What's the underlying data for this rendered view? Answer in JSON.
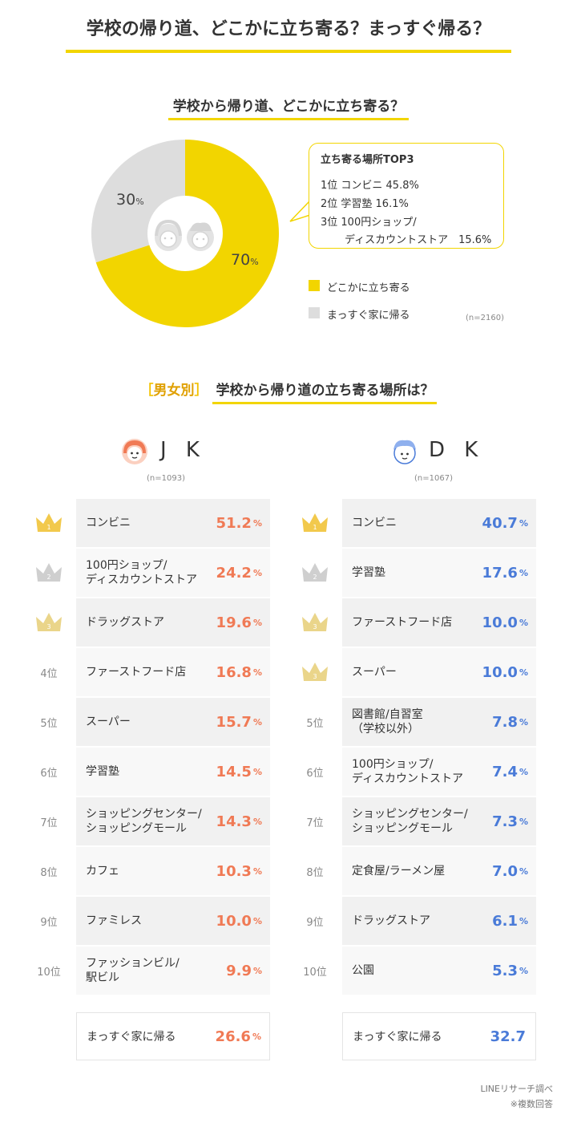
{
  "title": "学校の帰り道、どこかに立ち寄る？まっすぐ帰る？",
  "pie_question": "学校から帰り道、どこかに立ち寄る？",
  "callout": {
    "title": "立ち寄る場所TOP3",
    "lines": [
      "1位 コンビニ 45.8%",
      "2位 学習塾 16.1%",
      "3位 100円ショップ/",
      "ディスカウントストア　15.6%"
    ]
  },
  "pie_labels": {
    "a_num": "70",
    "b_num": "30",
    "unit": "%"
  },
  "legend": [
    "どこかに立ち寄る",
    "まっすぐ家に帰る"
  ],
  "pie_n": "(n=2160)",
  "section2": {
    "open": "［",
    "sex": "男女別",
    "close": "］",
    "rest": "学校から帰り道の立ち寄る場所は？"
  },
  "jk": {
    "label": "J K",
    "n": "(n=1093)"
  },
  "dk": {
    "label": "D K",
    "n": "(n=1067)"
  },
  "jk_rows": [
    {
      "rank": "1",
      "name": "コンビニ",
      "value": "51.2",
      "unit": "%"
    },
    {
      "rank": "2",
      "name": "100円ショップ/\nディスカウントストア",
      "value": "24.2",
      "unit": "%"
    },
    {
      "rank": "3",
      "name": "ドラッグストア",
      "value": "19.6",
      "unit": "%"
    },
    {
      "rank": "4位",
      "name": "ファーストフード店",
      "value": "16.8",
      "unit": "%"
    },
    {
      "rank": "5位",
      "name": "スーパー",
      "value": "15.7",
      "unit": "%"
    },
    {
      "rank": "6位",
      "name": "学習塾",
      "value": "14.5",
      "unit": "%"
    },
    {
      "rank": "7位",
      "name": "ショッピングセンター/\nショッピングモール",
      "value": "14.3",
      "unit": "%"
    },
    {
      "rank": "8位",
      "name": "カフェ",
      "value": "10.3",
      "unit": "%"
    },
    {
      "rank": "9位",
      "name": "ファミレス",
      "value": "10.0",
      "unit": "%"
    },
    {
      "rank": "10位",
      "name": "ファッションビル/\n駅ビル",
      "value": "9.9",
      "unit": "%"
    }
  ],
  "dk_rows": [
    {
      "rank": "1",
      "name": "コンビニ",
      "value": "40.7",
      "unit": "%"
    },
    {
      "rank": "2",
      "name": "学習塾",
      "value": "17.6",
      "unit": "%"
    },
    {
      "rank": "3",
      "name": "ファーストフード店",
      "value": "10.0",
      "unit": "%"
    },
    {
      "rank": "3",
      "name": "スーパー",
      "value": "10.0",
      "unit": "%"
    },
    {
      "rank": "5位",
      "name": "図書館/自習室\n（学校以外）",
      "value": "7.8",
      "unit": "%"
    },
    {
      "rank": "6位",
      "name": "100円ショップ/\nディスカウントストア",
      "value": "7.4",
      "unit": "%"
    },
    {
      "rank": "7位",
      "name": "ショッピングセンター/\nショッピングモール",
      "value": "7.3",
      "unit": "%"
    },
    {
      "rank": "8位",
      "name": "定食屋/ラーメン屋",
      "value": "7.0",
      "unit": "%"
    },
    {
      "rank": "9位",
      "name": "ドラッグストア",
      "value": "6.1",
      "unit": "%"
    },
    {
      "rank": "10位",
      "name": "公園",
      "value": "5.3",
      "unit": "%"
    }
  ],
  "jk_home": {
    "name": "まっすぐ家に帰る",
    "value": "26.6",
    "unit": "%"
  },
  "dk_home": {
    "name": "まっすぐ家に帰る",
    "value": "32.7"
  },
  "footer": [
    "LINEリサーチ調べ",
    "※複数回答"
  ],
  "colors": {
    "yellow": "#f2d500",
    "grey": "#dddddd",
    "jk": "#f07a55",
    "dk": "#4a7bd8",
    "gold": "#f2c94c",
    "silver": "#cfcfcf",
    "bronze": "#ead58a"
  },
  "chart_data": [
    {
      "type": "pie",
      "title": "学校から帰り道、どこかに立ち寄る？",
      "slices": [
        {
          "label": "どこかに立ち寄る",
          "value": 70
        },
        {
          "label": "まっすぐ家に帰る",
          "value": 30
        }
      ]
    },
    {
      "type": "table",
      "title": "JK",
      "categories": [
        "コンビニ",
        "100円ショップ/ディスカウントストア",
        "ドラッグストア",
        "ファーストフード店",
        "スーパー",
        "学習塾",
        "ショッピングセンター/ショッピングモール",
        "カフェ",
        "ファミレス",
        "ファッションビル/駅ビル",
        "まっすぐ家に帰る"
      ],
      "values": [
        51.2,
        24.2,
        19.6,
        16.8,
        15.7,
        14.5,
        14.3,
        10.3,
        10.0,
        9.9,
        26.6
      ]
    },
    {
      "type": "table",
      "title": "DK",
      "categories": [
        "コンビニ",
        "学習塾",
        "ファーストフード店",
        "スーパー",
        "図書館/自習室（学校以外）",
        "100円ショップ/ディスカウントストア",
        "ショッピングセンター/ショッピングモール",
        "定食屋/ラーメン屋",
        "ドラッグストア",
        "公園",
        "まっすぐ家に帰る"
      ],
      "values": [
        40.7,
        17.6,
        10.0,
        10.0,
        7.8,
        7.4,
        7.3,
        7.0,
        6.1,
        5.3,
        32.7
      ]
    }
  ]
}
